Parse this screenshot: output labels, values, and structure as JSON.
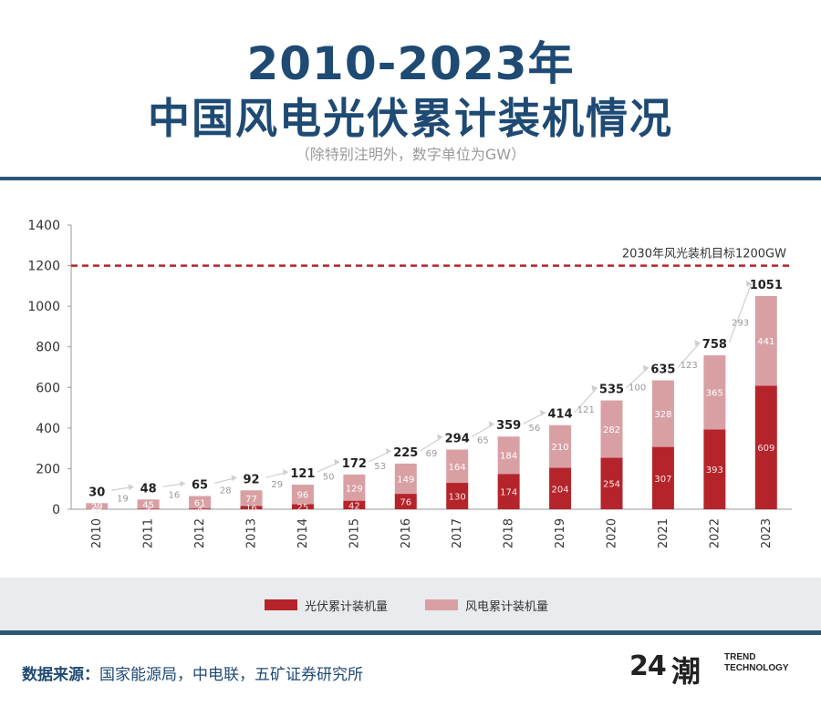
{
  "header": {
    "title_line1": "2010-2023年",
    "title_line2": "中国风电光伏累计装机情况",
    "subtitle": "（除特别注明外，数字单位为GW）"
  },
  "chart_data": {
    "type": "bar",
    "stacked": true,
    "categories": [
      "2010",
      "2011",
      "2012",
      "2013",
      "2014",
      "2015",
      "2016",
      "2017",
      "2018",
      "2019",
      "2020",
      "2021",
      "2022",
      "2023"
    ],
    "series": [
      {
        "name": "光伏累计装机量",
        "color": "#b5242b",
        "values": [
          1,
          3,
          4,
          16,
          25,
          42,
          76,
          130,
          174,
          204,
          254,
          307,
          393,
          609
        ],
        "labels": [
          "1",
          "3",
          "4",
          "16",
          "25",
          "42",
          "76",
          "130",
          "174",
          "204",
          "254",
          "307",
          "393",
          "609"
        ]
      },
      {
        "name": "风电累计装机量",
        "color": "#d9a0a4",
        "values": [
          29,
          45,
          61,
          77,
          96,
          129,
          149,
          164,
          184,
          210,
          282,
          328,
          365,
          441
        ],
        "labels": [
          "29",
          "45",
          "61",
          "77",
          "96",
          "129",
          "149",
          "164",
          "184",
          "210",
          "282",
          "328",
          "365",
          "441"
        ]
      }
    ],
    "totals": [
      "30",
      "48",
      "65",
      "92",
      "121",
      "172",
      "225",
      "294",
      "359",
      "414",
      "535",
      "635",
      "758",
      "1051"
    ],
    "increments": [
      "19",
      "16",
      "28",
      "29",
      "50",
      "53",
      "69",
      "65",
      "56",
      "121",
      "100",
      "123",
      "293"
    ],
    "ylim": [
      0,
      1400
    ],
    "yticks": [
      "0",
      "200",
      "400",
      "600",
      "800",
      "1000",
      "1200",
      "1400"
    ],
    "target": {
      "value": 1200,
      "label": "2030年风光装机目标1200GW",
      "color": "#b5242b"
    },
    "grid": false,
    "legend_position": "bottom"
  },
  "legend": {
    "solar": {
      "label": "光伏累计装机量",
      "color": "#b5242b"
    },
    "wind": {
      "label": "风电累计装机量",
      "color": "#d9a0a4"
    }
  },
  "footer": {
    "source_label": "数据来源：",
    "source_text": "国家能源局，中电联，五矿证券研究所",
    "logo_number": "24",
    "logo_glyph": "潮",
    "logo_line1": "TREND",
    "logo_line2": "TECHNOLOGY"
  }
}
